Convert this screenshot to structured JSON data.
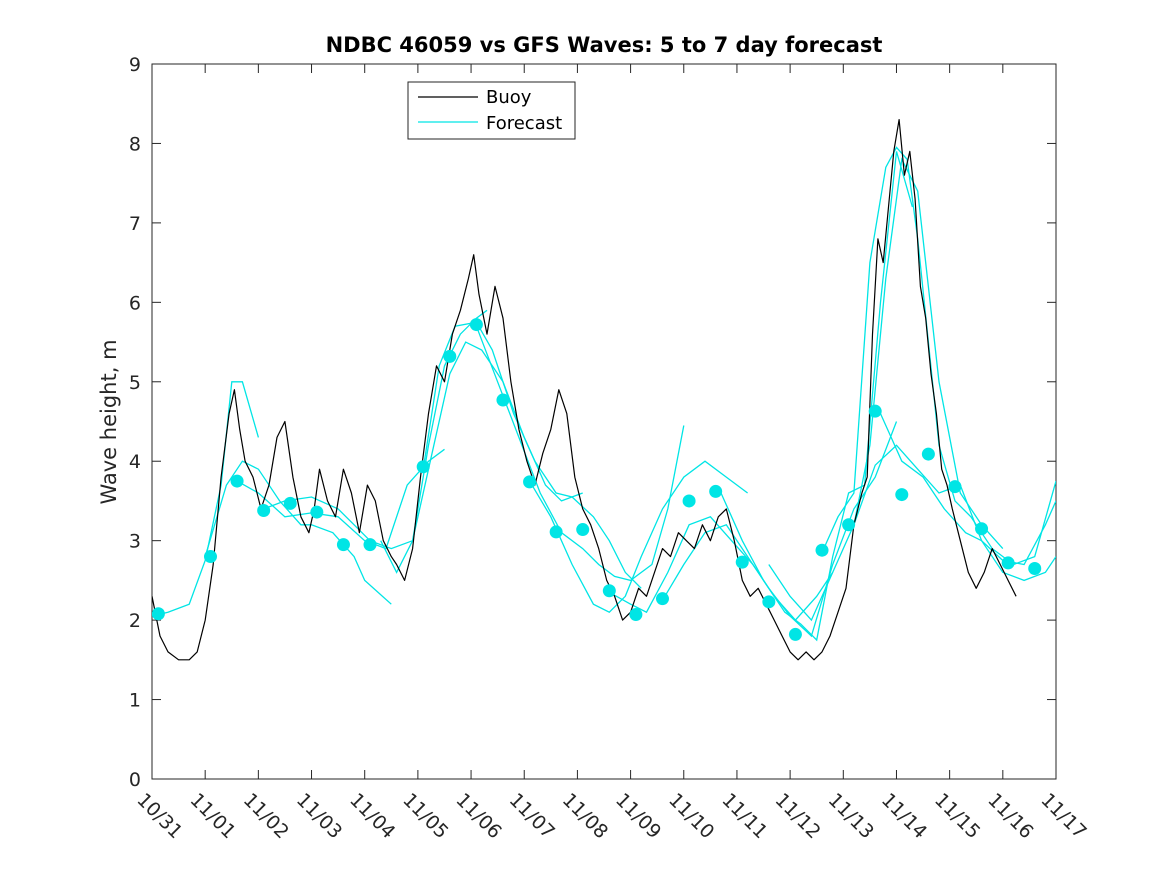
{
  "chart_data": {
    "type": "line",
    "title": "NDBC 46059 vs GFS Waves: 5 to 7 day forecast",
    "xlabel": "",
    "ylabel": "Wave height, m",
    "ylim": [
      0,
      9
    ],
    "yticks": [
      0,
      1,
      2,
      3,
      4,
      5,
      6,
      7,
      8,
      9
    ],
    "xlim": [
      0,
      17
    ],
    "xtick_labels": [
      "10/31",
      "11/01",
      "11/02",
      "11/03",
      "11/04",
      "11/05",
      "11/06",
      "11/07",
      "11/08",
      "11/09",
      "11/10",
      "11/11",
      "11/12",
      "11/13",
      "11/14",
      "11/15",
      "11/16",
      "11/17"
    ],
    "x_units": "days since 10/31 00:00",
    "legend": {
      "position": "top-center",
      "entries": [
        {
          "label": "Buoy",
          "color": "#000000"
        },
        {
          "label": "Forecast",
          "color": "#00e5e5"
        }
      ]
    },
    "series": [
      {
        "name": "Buoy",
        "color": "#000000",
        "x": [
          0,
          0.15,
          0.3,
          0.5,
          0.7,
          0.85,
          1.0,
          1.15,
          1.3,
          1.45,
          1.55,
          1.65,
          1.75,
          1.9,
          2.05,
          2.2,
          2.35,
          2.5,
          2.65,
          2.8,
          2.95,
          3.05,
          3.15,
          3.3,
          3.45,
          3.6,
          3.75,
          3.9,
          4.05,
          4.2,
          4.35,
          4.5,
          4.6,
          4.75,
          4.9,
          5.05,
          5.2,
          5.35,
          5.5,
          5.65,
          5.8,
          5.95,
          6.05,
          6.15,
          6.3,
          6.45,
          6.6,
          6.75,
          6.9,
          7.05,
          7.2,
          7.35,
          7.5,
          7.65,
          7.8,
          7.95,
          8.1,
          8.25,
          8.4,
          8.55,
          8.7,
          8.85,
          9.0,
          9.15,
          9.3,
          9.45,
          9.6,
          9.75,
          9.9,
          10.05,
          10.2,
          10.35,
          10.5,
          10.65,
          10.8,
          10.95,
          11.1,
          11.25,
          11.4,
          11.55,
          11.7,
          11.85,
          12.0,
          12.15,
          12.3,
          12.45,
          12.6,
          12.75,
          12.9,
          13.05,
          13.2,
          13.35,
          13.45,
          13.55,
          13.65,
          13.75,
          13.85,
          13.95,
          14.05,
          14.15,
          14.25,
          14.35,
          14.45,
          14.55,
          14.65,
          14.75,
          14.85,
          14.95,
          15.05,
          15.2,
          15.35,
          15.5,
          15.65,
          15.8,
          15.95,
          16.1,
          16.25
        ],
        "values": [
          2.3,
          1.8,
          1.6,
          1.5,
          1.5,
          1.6,
          2.0,
          2.7,
          3.8,
          4.6,
          4.9,
          4.4,
          4.0,
          3.8,
          3.4,
          3.7,
          4.3,
          4.5,
          3.8,
          3.3,
          3.1,
          3.4,
          3.9,
          3.5,
          3.3,
          3.9,
          3.6,
          3.1,
          3.7,
          3.5,
          3.0,
          2.8,
          2.7,
          2.5,
          2.9,
          3.8,
          4.6,
          5.2,
          5.0,
          5.6,
          5.9,
          6.3,
          6.6,
          6.1,
          5.6,
          6.2,
          5.8,
          5.0,
          4.4,
          4.0,
          3.7,
          4.1,
          4.4,
          4.9,
          4.6,
          3.8,
          3.4,
          3.2,
          2.9,
          2.5,
          2.3,
          2.0,
          2.1,
          2.4,
          2.3,
          2.6,
          2.9,
          2.8,
          3.1,
          3.0,
          2.9,
          3.2,
          3.0,
          3.3,
          3.4,
          3.0,
          2.5,
          2.3,
          2.4,
          2.2,
          2.0,
          1.8,
          1.6,
          1.5,
          1.6,
          1.5,
          1.6,
          1.8,
          2.1,
          2.4,
          3.2,
          3.6,
          3.8,
          5.6,
          6.8,
          6.5,
          7.2,
          7.9,
          8.3,
          7.6,
          7.9,
          7.3,
          6.2,
          5.8,
          5.1,
          4.6,
          3.9,
          3.7,
          3.4,
          3.0,
          2.6,
          2.4,
          2.6,
          2.9,
          2.7,
          2.5,
          2.3
        ]
      },
      {
        "name": "Forecast",
        "color": "#00e5e5",
        "segments": [
          {
            "x": [
              0.0,
              0.3,
              0.7,
              1.0,
              1.3,
              1.5,
              1.7,
              2.0
            ],
            "values": [
              2.05,
              2.1,
              2.2,
              2.75,
              3.7,
              5.0,
              5.0,
              4.3
            ]
          },
          {
            "x": [
              1.0,
              1.4,
              1.7,
              2.0,
              2.4,
              2.8,
              3.0,
              3.4,
              3.8,
              4.0,
              4.5
            ],
            "values": [
              2.8,
              3.7,
              4.0,
              3.9,
              3.5,
              3.2,
              3.2,
              3.1,
              2.8,
              2.5,
              2.2
            ]
          },
          {
            "x": [
              1.6,
              2.0,
              2.5,
              3.0,
              3.5,
              4.0,
              4.4,
              4.8,
              5.2,
              5.5
            ],
            "values": [
              3.75,
              3.6,
              3.3,
              3.35,
              3.3,
              3.0,
              2.9,
              3.7,
              4.0,
              4.15
            ]
          },
          {
            "x": [
              2.1,
              2.5,
              3.0,
              3.5,
              3.8,
              4.1,
              4.5,
              4.9,
              5.2,
              5.5,
              5.8,
              6.1,
              6.3
            ],
            "values": [
              3.4,
              3.5,
              3.55,
              3.4,
              3.2,
              3.0,
              2.9,
              3.0,
              4.2,
              5.2,
              5.6,
              5.8,
              5.9
            ]
          },
          {
            "x": [
              4.3,
              4.6,
              4.9,
              5.2,
              5.6,
              5.9,
              6.2,
              6.6,
              7.0,
              7.4,
              7.7,
              8.1
            ],
            "values": [
              3.0,
              2.6,
              3.0,
              3.9,
              5.1,
              5.5,
              5.4,
              5.0,
              4.3,
              3.7,
              3.5,
              3.6
            ]
          },
          {
            "x": [
              5.1,
              5.4,
              5.7,
              6.1,
              6.4,
              6.8,
              7.2,
              7.6,
              7.9,
              8.3,
              8.6,
              8.9,
              9.2
            ],
            "values": [
              3.9,
              5.2,
              5.7,
              5.75,
              5.4,
              4.6,
              4.0,
              3.6,
              3.55,
              3.3,
              3.0,
              2.6,
              2.4
            ]
          },
          {
            "x": [
              6.1,
              6.5,
              6.9,
              7.3,
              7.7,
              8.1,
              8.4,
              8.7,
              9.0,
              9.4,
              9.7,
              10.0
            ],
            "values": [
              5.7,
              5.0,
              4.3,
              3.6,
              3.1,
              2.9,
              2.7,
              2.55,
              2.5,
              2.7,
              3.4,
              4.45
            ]
          },
          {
            "x": [
              7.1,
              7.5,
              7.9,
              8.3,
              8.6,
              8.9,
              9.2,
              9.6,
              10.0,
              10.4,
              10.8,
              11.2
            ],
            "values": [
              3.75,
              3.3,
              2.7,
              2.2,
              2.1,
              2.3,
              2.8,
              3.4,
              3.8,
              4.0,
              3.8,
              3.6
            ]
          },
          {
            "x": [
              8.6,
              9.0,
              9.3,
              9.7,
              10.1,
              10.5,
              10.9,
              11.3,
              11.7,
              12.1,
              12.5,
              12.8
            ],
            "values": [
              2.35,
              2.2,
              2.1,
              2.6,
              3.2,
              3.3,
              3.0,
              2.7,
              2.3,
              2.0,
              2.3,
              2.6
            ]
          },
          {
            "x": [
              9.6,
              10.0,
              10.4,
              10.8,
              11.2,
              11.6,
              12.0,
              12.4,
              12.8,
              13.2,
              13.6,
              14.0
            ],
            "values": [
              2.25,
              2.7,
              3.1,
              3.2,
              2.8,
              2.4,
              2.05,
              1.8,
              2.7,
              3.4,
              3.8,
              4.5
            ]
          },
          {
            "x": [
              10.7,
              11.1,
              11.5,
              11.9,
              12.2,
              12.5,
              12.8,
              13.1,
              13.4,
              13.7,
              14.0,
              14.3
            ],
            "values": [
              3.6,
              3.0,
              2.5,
              2.1,
              1.95,
              1.75,
              2.8,
              3.6,
              3.7,
              6.0,
              7.9,
              7.2
            ]
          },
          {
            "x": [
              11.6,
              12.0,
              12.4,
              12.8,
              13.2,
              13.5,
              13.8,
              14.1,
              14.4,
              14.8,
              15.2,
              15.6,
              16.0
            ],
            "values": [
              2.7,
              2.3,
              2.0,
              2.6,
              3.2,
              4.2,
              6.3,
              7.8,
              7.4,
              5.0,
              3.6,
              3.2,
              2.9
            ]
          },
          {
            "x": [
              12.6,
              12.9,
              13.2,
              13.5,
              13.8,
              14.0,
              14.2,
              14.4,
              14.6,
              14.8,
              15.1,
              15.4,
              15.8,
              16.2,
              16.6,
              17.0
            ],
            "values": [
              2.85,
              3.3,
              3.6,
              6.5,
              7.7,
              7.95,
              7.8,
              6.8,
              5.5,
              4.2,
              3.5,
              3.3,
              2.9,
              2.7,
              2.8,
              3.75
            ]
          },
          {
            "x": [
              13.2,
              13.6,
              14.0,
              14.4,
              14.8,
              15.2,
              15.6,
              16.0,
              16.4,
              16.8,
              17.0
            ],
            "values": [
              3.2,
              3.95,
              4.2,
              3.9,
              3.6,
              3.7,
              3.0,
              2.75,
              2.7,
              3.2,
              3.5
            ]
          },
          {
            "x": [
              13.7,
              14.1,
              14.5,
              14.9,
              15.3,
              15.6,
              16.0,
              16.4,
              16.8,
              17.0
            ],
            "values": [
              4.6,
              4.0,
              3.8,
              3.4,
              3.1,
              3.0,
              2.6,
              2.5,
              2.6,
              2.8
            ]
          }
        ]
      }
    ],
    "markers": {
      "name": "Forecast",
      "color": "#00e5e5",
      "x": [
        0.12,
        1.1,
        1.6,
        2.1,
        2.6,
        3.1,
        3.6,
        4.1,
        5.1,
        5.6,
        6.1,
        6.6,
        7.1,
        7.6,
        8.1,
        8.6,
        9.1,
        9.6,
        10.1,
        10.6,
        11.1,
        11.6,
        12.1,
        12.6,
        13.1,
        13.6,
        14.1,
        14.6,
        15.1,
        15.6,
        16.1,
        16.6
      ],
      "values": [
        2.08,
        2.8,
        3.75,
        3.38,
        3.47,
        3.36,
        2.95,
        2.95,
        3.93,
        5.32,
        5.72,
        4.77,
        3.74,
        3.11,
        3.14,
        2.37,
        2.07,
        2.27,
        3.5,
        3.62,
        2.73,
        2.23,
        1.82,
        2.88,
        3.2,
        4.63,
        3.58,
        4.09,
        3.68,
        3.15,
        2.72,
        2.65
      ]
    }
  }
}
